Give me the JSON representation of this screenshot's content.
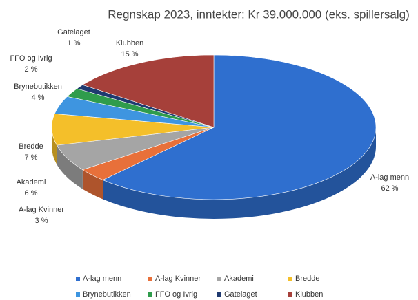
{
  "chart_data": {
    "type": "pie",
    "title": "Regnskap 2023, inntekter: Kr 39.000.000 (eks. spillersalg)",
    "categories": [
      "A-lag menn",
      "A-lag Kvinner",
      "Akademi",
      "Bredde",
      "Brynebutikken",
      "FFO og Ivrig",
      "Gatelaget",
      "Klubben"
    ],
    "values": [
      62,
      3,
      6,
      7,
      4,
      2,
      1,
      15
    ],
    "value_labels": [
      "62 %",
      "3 %",
      "6 %",
      "7 %",
      "4 %",
      "2 %",
      "1 %",
      "15 %"
    ],
    "colors": [
      "#2f6fcf",
      "#e8703a",
      "#a5a5a5",
      "#f4bf2a",
      "#3e95e0",
      "#2f9c4c",
      "#1f3a70",
      "#a6403a"
    ],
    "legend": "bottom"
  }
}
